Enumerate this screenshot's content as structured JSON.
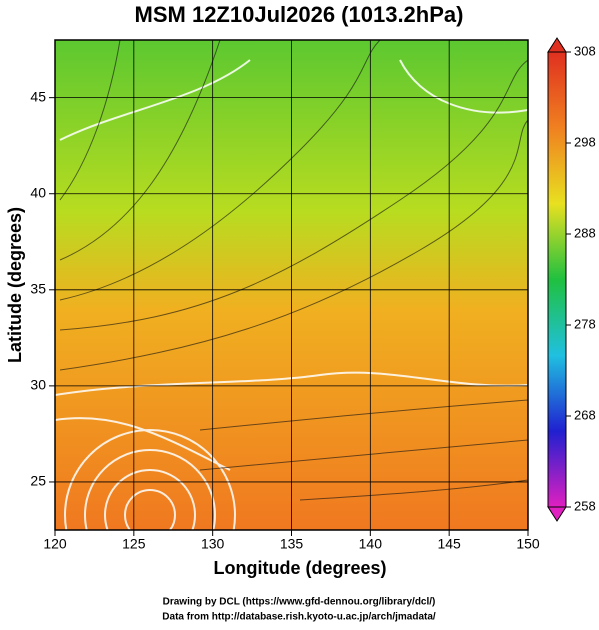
{
  "chart_data": {
    "type": "map",
    "title": "MSM 12Z10Jul2026 (1013.2hPa)",
    "x_label": "Longitude (degrees)",
    "y_label": "Latitude  (degrees)",
    "xlim": [
      120,
      150
    ],
    "xticks": [
      120,
      125,
      130,
      135,
      140,
      145,
      150
    ],
    "ylim": [
      22.5,
      48
    ],
    "yticks": [
      25,
      30,
      35,
      40,
      45
    ],
    "grid": true,
    "colorbar": {
      "lim": [
        258,
        308
      ],
      "ticks": [
        258,
        268,
        278,
        288,
        298,
        308
      ],
      "colors": [
        "#e020c0",
        "#2020d0",
        "#20c0e0",
        "#20c040",
        "#e8e020",
        "#f08020",
        "#e03020"
      ]
    },
    "footer": [
      "Drawing by DCL (https://www.gfd-dennou.org/library/dcl/)",
      "Data from http://database.rish.kyoto-u.ac.jp/arch/jmadata/"
    ]
  }
}
